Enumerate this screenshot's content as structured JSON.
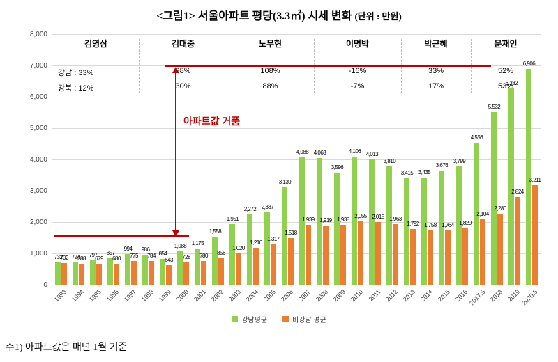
{
  "header": {
    "title": "<그림1> 서울아파트 평당(3.3㎡) 시세 변화",
    "unit_label": "(단위 : 만원)"
  },
  "annotation": {
    "bubble_label": "아파트값 거품"
  },
  "footnote": "주1) 아파트값은 매년 1월 기준",
  "colors": {
    "gangnam": "#92d050",
    "non_gangnam": "#ed7d31",
    "bubble_red": "#c00000"
  },
  "chart_data": {
    "type": "bar",
    "title": "<그림1> 서울아파트 평당(3.3㎡) 시세 변화 (단위 : 만원)",
    "unit": "만원",
    "categories": [
      "1993",
      "1994",
      "1995",
      "1996",
      "1997",
      "1998",
      "1999",
      "2000",
      "2001",
      "2002",
      "2003",
      "2004",
      "2005",
      "2006",
      "2007",
      "2008",
      "2009",
      "2010",
      "2011",
      "2012",
      "2013",
      "2014",
      "2015",
      "2016",
      "2017.5",
      "2018",
      "2019",
      "2020.5"
    ],
    "series": [
      {
        "name": "강남평균",
        "color": "#92d050",
        "values": [
          732,
          724,
          797,
          857,
          994,
          986,
          854,
          1088,
          1175,
          1558,
          1951,
          2272,
          2337,
          3139,
          4088,
          4063,
          3596,
          4106,
          4013,
          3810,
          3415,
          3435,
          3676,
          3799,
          4556,
          5532,
          6282,
          6906
        ]
      },
      {
        "name": "비강남 평균",
        "color": "#ed7d31",
        "values": [
          702,
          688,
          679,
          680,
          775,
          784,
          643,
          728,
          780,
          856,
          1020,
          1210,
          1317,
          1518,
          1939,
          1919,
          1938,
          2055,
          2015,
          1963,
          1792,
          1758,
          1764,
          1820,
          2104,
          2280,
          2824,
          3211
        ]
      }
    ],
    "ylim": [
      0,
      8000
    ],
    "ytick_step": 1000,
    "grid": true,
    "legend_position": "bottom",
    "president_eras": [
      {
        "name": "김영삼",
        "row1": "강남 : 33%",
        "row2": "강북 : 12%",
        "span": [
          0,
          4
        ]
      },
      {
        "name": "김대중",
        "row1": "98%",
        "row2": "30%",
        "span": [
          5,
          9
        ]
      },
      {
        "name": "노무현",
        "row1": "108%",
        "row2": "88%",
        "span": [
          10,
          14
        ]
      },
      {
        "name": "이명박",
        "row1": "-16%",
        "row2": "-7%",
        "span": [
          15,
          19
        ]
      },
      {
        "name": "박근혜",
        "row1": "33%",
        "row2": "17%",
        "span": [
          20,
          23
        ]
      },
      {
        "name": "문재인",
        "row1": "52%",
        "row2": "53%",
        "span": [
          24,
          27
        ]
      }
    ]
  }
}
